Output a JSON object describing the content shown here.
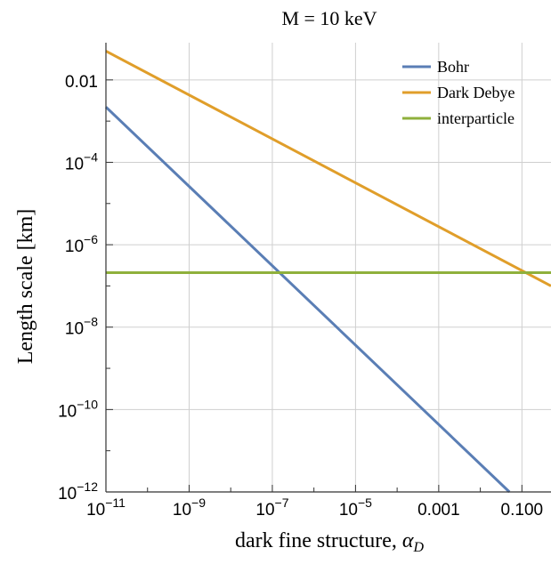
{
  "chart_data": {
    "type": "line",
    "title": "M = 10 keV",
    "xlabel": "dark fine structure, ",
    "xlabel_symbol": "α",
    "xlabel_subscript": "D",
    "ylabel": "Length scale [km]",
    "x_scale": "log",
    "y_scale": "log",
    "xlim": [
      1e-11,
      0.5
    ],
    "ylim": [
      1e-12,
      0.08
    ],
    "x_ticks": [
      {
        "value": 1e-11,
        "base": "10",
        "exp": "−11"
      },
      {
        "value": 1e-09,
        "base": "10",
        "exp": "−9"
      },
      {
        "value": 1e-07,
        "base": "10",
        "exp": "−7"
      },
      {
        "value": 1e-05,
        "base": "10",
        "exp": "−5"
      },
      {
        "value": 0.001,
        "label": "0.001"
      },
      {
        "value": 0.1,
        "label": "0.100"
      }
    ],
    "y_ticks": [
      {
        "value": 1e-12,
        "base": "10",
        "exp": "−12"
      },
      {
        "value": 1e-10,
        "base": "10",
        "exp": "−10"
      },
      {
        "value": 1e-08,
        "base": "10",
        "exp": "−8"
      },
      {
        "value": 1e-06,
        "base": "10",
        "exp": "−6"
      },
      {
        "value": 0.0001,
        "base": "10",
        "exp": "−4"
      },
      {
        "value": 0.01,
        "label": "0.01"
      }
    ],
    "grid": true,
    "legend_position": "top-right",
    "series": [
      {
        "name": "Bohr",
        "color": "#5a7eb5",
        "x": [
          1e-11,
          0.05
        ],
        "y": [
          0.0022,
          1e-12
        ]
      },
      {
        "name": "Dark Debye",
        "color": "#e09e2a",
        "x": [
          1e-11,
          0.5
        ],
        "y": [
          0.05,
          1e-07
        ]
      },
      {
        "name": "interparticle",
        "color": "#8fb03c",
        "x": [
          1e-11,
          0.5
        ],
        "y": [
          2.1e-07,
          2.1e-07
        ]
      }
    ]
  }
}
